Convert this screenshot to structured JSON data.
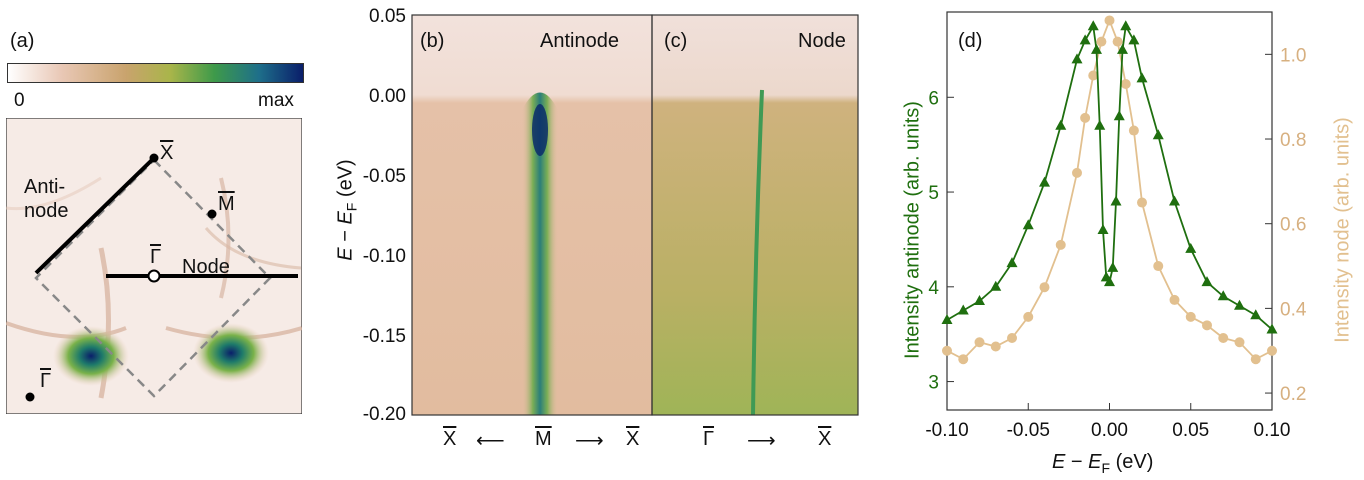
{
  "panel_a": {
    "label": "(a)",
    "colorbar_min": "0",
    "colorbar_max": "max",
    "labels": {
      "xbar_top": "X",
      "mbar": "M",
      "gamma_center": "Γ",
      "gamma_corner": "Γ",
      "antinode_line1": "Anti-",
      "antinode_line2": "node",
      "node": "Node"
    }
  },
  "panel_b": {
    "label": "(b)",
    "title": "Antinode",
    "xlabels": [
      "X",
      "⟵",
      "M",
      "⟶",
      "X"
    ]
  },
  "panel_c": {
    "label": "(c)",
    "title": "Node",
    "xlabels": [
      "Γ",
      "⟶",
      "X"
    ]
  },
  "panel_bc_axis": {
    "ylabel_main": "E",
    "ylabel_minus": " − ",
    "ylabel_sub_E": "E",
    "ylabel_sub": "F",
    "ylabel_unit": " (eV)",
    "yticks": [
      "0.05",
      "0.00",
      "-0.05",
      "-0.10",
      "-0.15",
      "-0.20"
    ]
  },
  "panel_d": {
    "label": "(d)"
  },
  "colors": {
    "antinode": "#1f6f0f",
    "node": "#e2c08f",
    "map_bg": "#e9c8b6"
  },
  "chart_data": {
    "type": "line",
    "title": "",
    "xlabel": "E − EF (eV)",
    "ylabel_left": "Intensity antinode (arb. units)",
    "ylabel_right": "Intensity node (arb. units)",
    "xlim": [
      -0.1,
      0.1
    ],
    "ylim_left": [
      2.7,
      6.9
    ],
    "ylim_right": [
      0.16,
      1.1
    ],
    "xticks": [
      "-0.10",
      "-0.05",
      "0.00",
      "0.05",
      "0.10"
    ],
    "yticks_left": [
      "3",
      "4",
      "5",
      "6"
    ],
    "yticks_right": [
      "0.2",
      "0.4",
      "0.6",
      "0.8",
      "1.0"
    ],
    "series": [
      {
        "axis": "left",
        "marker": "triangle",
        "x": [
          -0.1,
          -0.09,
          -0.08,
          -0.07,
          -0.06,
          -0.05,
          -0.04,
          -0.03,
          -0.02,
          -0.015,
          -0.01,
          -0.008,
          -0.006,
          -0.004,
          -0.002,
          0.0,
          0.002,
          0.004,
          0.006,
          0.008,
          0.01,
          0.015,
          0.02,
          0.03,
          0.04,
          0.05,
          0.06,
          0.07,
          0.08,
          0.09,
          0.1
        ],
        "y": [
          3.65,
          3.75,
          3.85,
          4.0,
          4.25,
          4.65,
          5.1,
          5.7,
          6.4,
          6.6,
          6.75,
          6.5,
          5.7,
          4.6,
          4.1,
          4.05,
          4.2,
          4.9,
          5.8,
          6.5,
          6.75,
          6.6,
          6.2,
          5.6,
          4.9,
          4.4,
          4.05,
          3.9,
          3.8,
          3.7,
          3.55
        ]
      },
      {
        "axis": "right",
        "marker": "circle",
        "x": [
          -0.1,
          -0.09,
          -0.08,
          -0.07,
          -0.06,
          -0.05,
          -0.04,
          -0.03,
          -0.02,
          -0.015,
          -0.01,
          -0.005,
          0.0,
          0.005,
          0.01,
          0.015,
          0.02,
          0.03,
          0.04,
          0.05,
          0.06,
          0.07,
          0.08,
          0.09,
          0.1
        ],
        "y": [
          0.3,
          0.28,
          0.32,
          0.31,
          0.33,
          0.38,
          0.45,
          0.55,
          0.72,
          0.85,
          0.95,
          1.03,
          1.08,
          1.03,
          0.93,
          0.82,
          0.65,
          0.5,
          0.42,
          0.38,
          0.36,
          0.33,
          0.32,
          0.28,
          0.3
        ]
      }
    ]
  }
}
